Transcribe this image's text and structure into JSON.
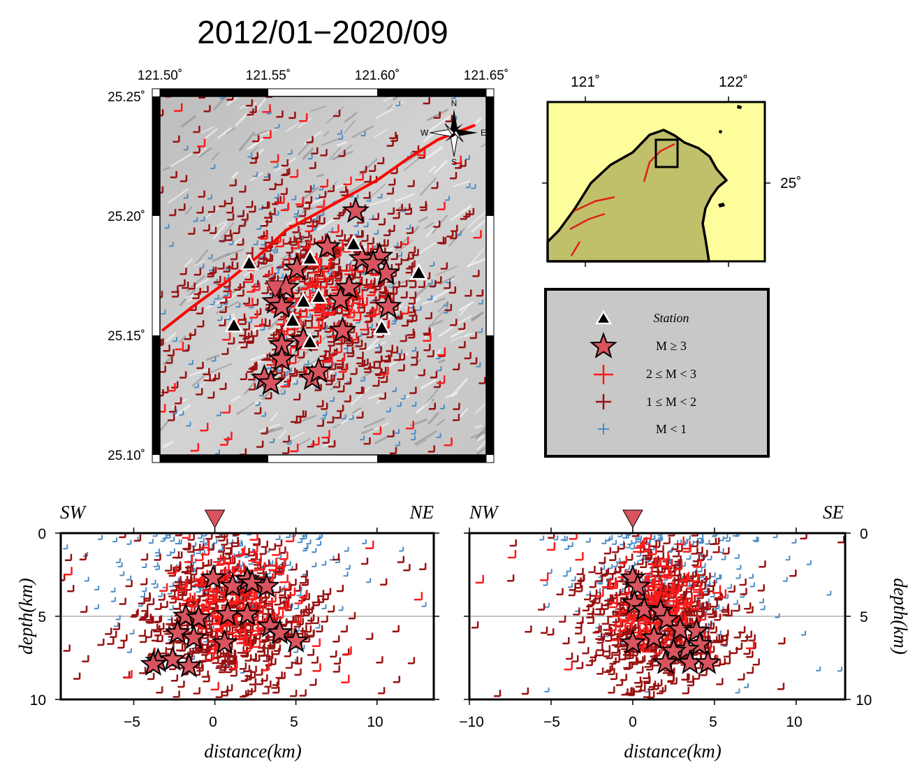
{
  "title": "2012/01−2020/09",
  "colors": {
    "m_ge3": "#d9545f",
    "m_2to3": "#ff1a1a",
    "m_1to2": "#991111",
    "m_lt1": "#4a8bc4",
    "fault": "#ff0000",
    "land_inset": "#c0bf6a",
    "sea_inset": "#fdfd9c",
    "legend_bg": "#c8c8c8"
  },
  "map": {
    "lon_ticks": [
      "121.50˚",
      "121.55˚",
      "121.60˚",
      "121.65˚"
    ],
    "lat_ticks": [
      "25.25˚",
      "25.20˚",
      "25.15˚",
      "25.10˚"
    ],
    "compass": {
      "n": "N",
      "s": "S",
      "e": "E",
      "w": "W"
    }
  },
  "inset": {
    "lon_ticks": [
      "121˚",
      "122˚"
    ],
    "lat_ticks": [
      "25˚"
    ]
  },
  "legend": {
    "items": [
      {
        "symbol": "triangle",
        "label": "Station"
      },
      {
        "symbol": "star",
        "label": "M ≥ 3"
      },
      {
        "symbol": "cross-large",
        "label": "2 ≤ M < 3"
      },
      {
        "symbol": "cross-medium",
        "label": "1 ≤ M < 2"
      },
      {
        "symbol": "cross-small",
        "label": "M < 1"
      }
    ]
  },
  "sections": [
    {
      "left_dir": "SW",
      "right_dir": "NE",
      "x_ticks": [
        "−5",
        "0",
        "5",
        "10"
      ],
      "x_values": [
        -5,
        0,
        5,
        10
      ],
      "y_ticks": [
        "0",
        "5",
        "10"
      ],
      "xlabel": "distance(km)",
      "ylabel": "depth(km)",
      "xlim": [
        -9.5,
        13.5
      ],
      "ylim": [
        0,
        10
      ],
      "volcano_x": 0
    },
    {
      "left_dir": "NW",
      "right_dir": "SE",
      "x_ticks": [
        "−10",
        "−5",
        "0",
        "5",
        "10"
      ],
      "x_values": [
        -10,
        -5,
        0,
        5,
        10
      ],
      "y_ticks": [
        "0",
        "5",
        "10"
      ],
      "xlabel": "distance(km)",
      "ylabel": "depth(km)",
      "xlim": [
        -10,
        13
      ],
      "ylim": [
        0,
        10
      ],
      "volcano_x": 0
    }
  ],
  "chart_data": {
    "type": "scatter",
    "stations": [
      {
        "lon": 121.541,
        "lat": 25.18
      },
      {
        "lon": 121.569,
        "lat": 25.182
      },
      {
        "lon": 121.589,
        "lat": 25.188
      },
      {
        "lon": 121.619,
        "lat": 25.176
      },
      {
        "lon": 121.534,
        "lat": 25.154
      },
      {
        "lon": 121.566,
        "lat": 25.164
      },
      {
        "lon": 121.573,
        "lat": 25.166
      },
      {
        "lon": 121.561,
        "lat": 25.156
      },
      {
        "lon": 121.569,
        "lat": 25.147
      },
      {
        "lon": 121.602,
        "lat": 25.153
      }
    ],
    "volcano": {
      "lon": 121.553,
      "lat": 25.169
    },
    "fault": {
      "lon": [
        121.501,
        121.515,
        121.53,
        121.545,
        121.558,
        121.572,
        121.586,
        121.6,
        121.614,
        121.628,
        121.645
      ],
      "lat": [
        25.152,
        25.162,
        25.172,
        25.183,
        25.194,
        25.201,
        25.208,
        25.215,
        25.224,
        25.232,
        25.238
      ]
    },
    "m_ge3_epicenters": [
      {
        "lon": 121.59,
        "lat": 25.202
      },
      {
        "lon": 121.577,
        "lat": 25.187
      },
      {
        "lon": 121.593,
        "lat": 25.182
      },
      {
        "lon": 121.601,
        "lat": 25.183
      },
      {
        "lon": 121.604,
        "lat": 25.176
      },
      {
        "lon": 121.598,
        "lat": 25.18
      },
      {
        "lon": 121.563,
        "lat": 25.178
      },
      {
        "lon": 121.558,
        "lat": 25.17
      },
      {
        "lon": 121.553,
        "lat": 25.164
      },
      {
        "lon": 121.556,
        "lat": 25.162
      },
      {
        "lon": 121.587,
        "lat": 25.17
      },
      {
        "lon": 121.583,
        "lat": 25.165
      },
      {
        "lon": 121.605,
        "lat": 25.162
      },
      {
        "lon": 121.584,
        "lat": 25.152
      },
      {
        "lon": 121.566,
        "lat": 25.148
      },
      {
        "lon": 121.556,
        "lat": 25.146
      },
      {
        "lon": 121.556,
        "lat": 25.14
      },
      {
        "lon": 121.548,
        "lat": 25.132
      },
      {
        "lon": 121.551,
        "lat": 25.13
      },
      {
        "lon": 121.57,
        "lat": 25.132
      },
      {
        "lon": 121.573,
        "lat": 25.135
      }
    ],
    "section1_m_ge3": [
      {
        "x": 2.0,
        "depth": 2.8
      },
      {
        "x": 1.1,
        "depth": 3.2
      },
      {
        "x": 2.3,
        "depth": 3.0
      },
      {
        "x": -0.1,
        "depth": 2.7
      },
      {
        "x": 3.2,
        "depth": 3.2
      },
      {
        "x": -1.8,
        "depth": 5.0
      },
      {
        "x": -1.0,
        "depth": 5.1
      },
      {
        "x": 0.8,
        "depth": 4.9
      },
      {
        "x": 2.0,
        "depth": 4.9
      },
      {
        "x": 3.4,
        "depth": 5.6
      },
      {
        "x": 4.0,
        "depth": 6.0
      },
      {
        "x": 5.0,
        "depth": 6.5
      },
      {
        "x": -2.3,
        "depth": 6.0
      },
      {
        "x": -1.3,
        "depth": 6.3
      },
      {
        "x": 0.6,
        "depth": 6.6
      },
      {
        "x": -3.5,
        "depth": 7.7
      },
      {
        "x": -2.6,
        "depth": 7.6
      },
      {
        "x": -1.6,
        "depth": 8.0
      },
      {
        "x": -3.8,
        "depth": 7.9
      }
    ],
    "section2_m_ge3": [
      {
        "x": 0.0,
        "depth": 2.7
      },
      {
        "x": 0.3,
        "depth": 3.2
      },
      {
        "x": 0.1,
        "depth": 4.2
      },
      {
        "x": 0.7,
        "depth": 4.6
      },
      {
        "x": 1.7,
        "depth": 4.7
      },
      {
        "x": 2.1,
        "depth": 5.2
      },
      {
        "x": 2.9,
        "depth": 5.8
      },
      {
        "x": 3.9,
        "depth": 5.9
      },
      {
        "x": 4.1,
        "depth": 6.7
      },
      {
        "x": 3.3,
        "depth": 7.0
      },
      {
        "x": 2.5,
        "depth": 7.1
      },
      {
        "x": 1.3,
        "depth": 6.3
      },
      {
        "x": 0.0,
        "depth": 6.6
      },
      {
        "x": 2.0,
        "depth": 7.8
      },
      {
        "x": 3.5,
        "depth": 7.8
      },
      {
        "x": 4.6,
        "depth": 7.8
      }
    ]
  }
}
